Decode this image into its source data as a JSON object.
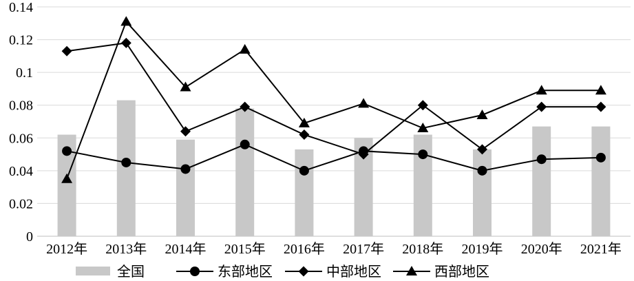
{
  "chart_data": {
    "type": "bar",
    "categories": [
      "2012年",
      "2013年",
      "2014年",
      "2015年",
      "2016年",
      "2017年",
      "2018年",
      "2019年",
      "2020年",
      "2021年"
    ],
    "ylim": [
      0,
      0.14
    ],
    "yticks": [
      0,
      0.02,
      0.04,
      0.06,
      0.08,
      0.1,
      0.12,
      0.14
    ],
    "ytick_labels": [
      "0",
      "0.02",
      "0.04",
      "0.06",
      "0.08",
      "0.1",
      "0.12",
      "0.14"
    ],
    "grid": true,
    "legend_position": "bottom",
    "series": [
      {
        "name": "全国",
        "type": "bar",
        "marker": "none",
        "color": "#c8c8c8",
        "values": [
          0.062,
          0.083,
          0.059,
          0.078,
          0.053,
          0.06,
          0.062,
          0.053,
          0.067,
          0.067
        ]
      },
      {
        "name": "东部地区",
        "type": "line",
        "marker": "circle",
        "color": "#000000",
        "values": [
          0.052,
          0.045,
          0.041,
          0.056,
          0.04,
          0.052,
          0.05,
          0.04,
          0.047,
          0.048
        ]
      },
      {
        "name": "中部地区",
        "type": "line",
        "marker": "diamond",
        "color": "#000000",
        "values": [
          0.113,
          0.118,
          0.064,
          0.079,
          0.062,
          0.05,
          0.08,
          0.053,
          0.079,
          0.079
        ]
      },
      {
        "name": "西部地区",
        "type": "line",
        "marker": "triangle",
        "color": "#000000",
        "values": [
          0.035,
          0.131,
          0.091,
          0.114,
          0.069,
          0.081,
          0.066,
          0.074,
          0.089,
          0.089
        ]
      }
    ]
  }
}
